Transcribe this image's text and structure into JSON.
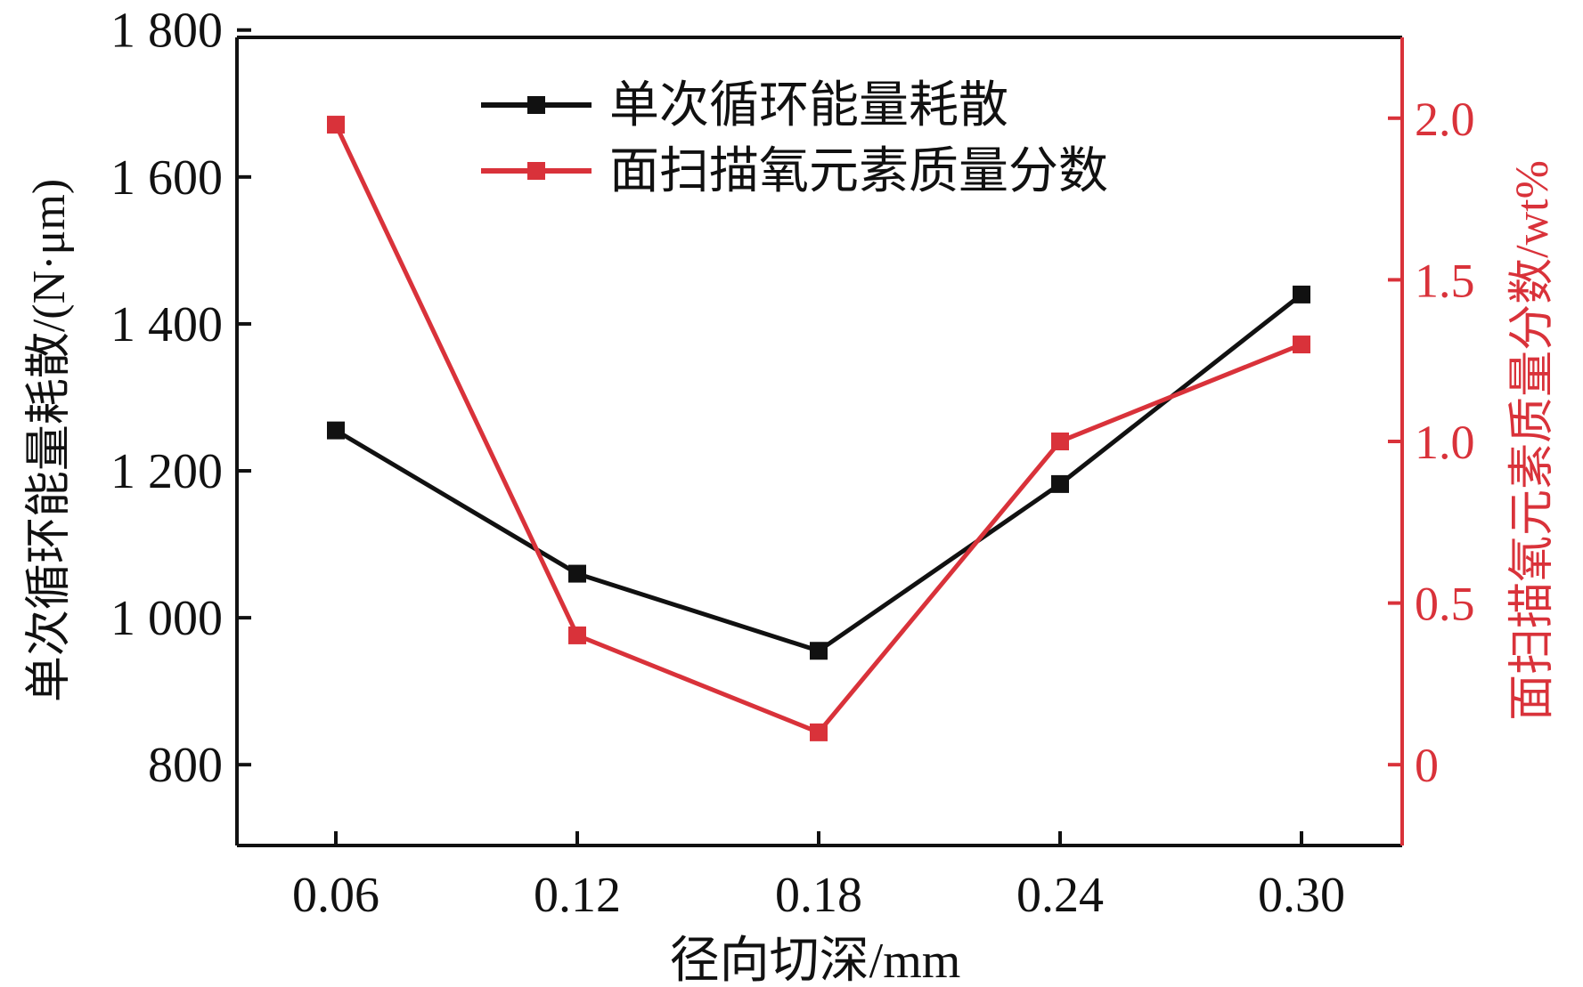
{
  "chart_data": {
    "type": "line",
    "categories": [
      "0.06",
      "0.12",
      "0.18",
      "0.24",
      "0.30"
    ],
    "xlabel": "径向切深/mm",
    "ylabel_left": "单次循环能量耗散/(N·μm)",
    "ylabel_right": "面扫描氧元素质量分数/wt%",
    "y_left": {
      "lim": [
        690,
        1790
      ],
      "ticks": [
        800,
        1000,
        1200,
        1400,
        1600,
        1800
      ],
      "tick_labels": [
        "800",
        "1 000",
        "1 200",
        "1 400",
        "1 600",
        "1 800"
      ]
    },
    "y_right": {
      "lim": [
        -0.25,
        2.25
      ],
      "ticks": [
        0,
        0.5,
        1.0,
        1.5,
        2.0
      ],
      "tick_labels": [
        "0",
        "0.5",
        "1.0",
        "1.5",
        "2.0"
      ]
    },
    "series": [
      {
        "name": "单次循环能量耗散",
        "axis": "left",
        "color": "#111111",
        "values": [
          1255,
          1060,
          955,
          1182,
          1440
        ]
      },
      {
        "name": "面扫描氧元素质量分数",
        "axis": "right",
        "color": "#d9323a",
        "values": [
          1.98,
          0.4,
          0.1,
          1.0,
          1.3
        ]
      }
    ],
    "legend": "top-center",
    "grid": false,
    "colors": {
      "left_axis": "#111111",
      "right_axis": "#d9323a"
    }
  }
}
